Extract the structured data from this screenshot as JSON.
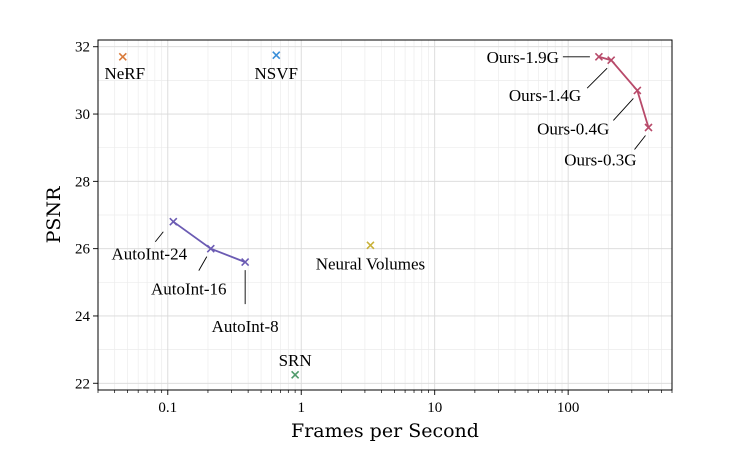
{
  "chart_data": {
    "type": "scatter",
    "xlabel": "Frames per Second",
    "ylabel": "PSNR",
    "xscale": "log",
    "xlim": [
      0.03,
      600
    ],
    "ylim": [
      21.8,
      32.2
    ],
    "xticks": [
      0.1,
      1,
      10,
      100
    ],
    "xtick_labels": [
      "0.1",
      "1",
      "10",
      "100"
    ],
    "yticks": [
      22,
      24,
      26,
      28,
      30,
      32
    ],
    "ytick_labels": [
      "22",
      "24",
      "26",
      "28",
      "30",
      "32"
    ],
    "grid": true,
    "marker": "x",
    "series": [
      {
        "name": "",
        "color": "#d97a3a",
        "connected": false,
        "points": [
          {
            "label": "NeRF",
            "x": 0.046,
            "y": 31.7
          }
        ]
      },
      {
        "name": "",
        "color": "#3a8fd9",
        "connected": false,
        "points": [
          {
            "label": "NSVF",
            "x": 0.65,
            "y": 31.75
          }
        ]
      },
      {
        "name": "",
        "color": "#6b5bb3",
        "connected": true,
        "points": [
          {
            "label": "AutoInt-24",
            "x": 0.11,
            "y": 26.8
          },
          {
            "label": "AutoInt-16",
            "x": 0.21,
            "y": 26.0
          },
          {
            "label": "AutoInt-8",
            "x": 0.38,
            "y": 25.6
          }
        ]
      },
      {
        "name": "",
        "color": "#c9b13a",
        "connected": false,
        "points": [
          {
            "label": "Neural Volumes",
            "x": 3.3,
            "y": 26.1
          }
        ]
      },
      {
        "name": "",
        "color": "#4f9a6a",
        "connected": false,
        "points": [
          {
            "label": "SRN",
            "x": 0.9,
            "y": 22.25
          }
        ]
      },
      {
        "name": "",
        "color": "#b84a6a",
        "connected": true,
        "points": [
          {
            "label": "Ours-1.9G",
            "x": 170,
            "y": 31.7
          },
          {
            "label": "Ours-1.4G",
            "x": 210,
            "y": 31.6
          },
          {
            "label": "Ours-0.4G",
            "x": 330,
            "y": 30.7
          },
          {
            "label": "Ours-0.3G",
            "x": 400,
            "y": 29.6
          }
        ]
      }
    ]
  }
}
